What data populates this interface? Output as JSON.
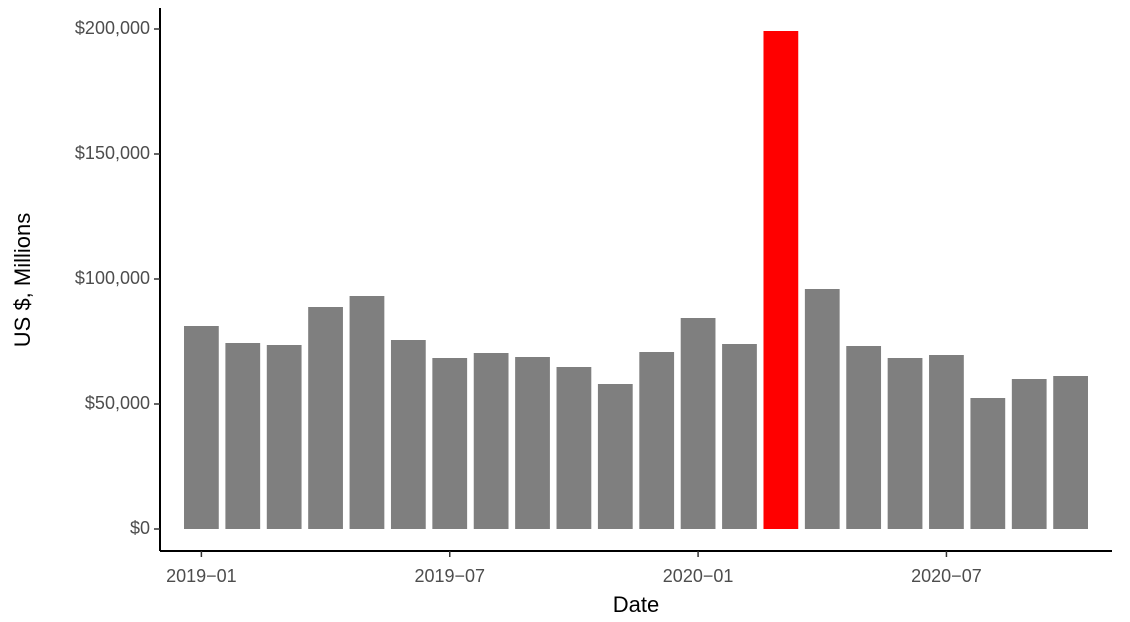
{
  "chart_data": {
    "type": "bar",
    "x_label": "Date",
    "y_label": "US $, Millions",
    "x": [
      "2019-01",
      "2019-02",
      "2019-03",
      "2019-04",
      "2019-05",
      "2019-06",
      "2019-07",
      "2019-08",
      "2019-09",
      "2019-10",
      "2019-11",
      "2019-12",
      "2020-01",
      "2020-02",
      "2020-03",
      "2020-04",
      "2020-05",
      "2020-06",
      "2020-07",
      "2020-08",
      "2020-09",
      "2020-10"
    ],
    "values": [
      81200,
      74400,
      73600,
      88800,
      93200,
      75600,
      68400,
      70400,
      68800,
      64800,
      58000,
      70800,
      84400,
      74000,
      199200,
      96000,
      73200,
      68400,
      69600,
      52400,
      60000,
      61200
    ],
    "colors": [
      "#7f7f7f",
      "#7f7f7f",
      "#7f7f7f",
      "#7f7f7f",
      "#7f7f7f",
      "#7f7f7f",
      "#7f7f7f",
      "#7f7f7f",
      "#7f7f7f",
      "#7f7f7f",
      "#7f7f7f",
      "#7f7f7f",
      "#7f7f7f",
      "#7f7f7f",
      "#ff0000",
      "#7f7f7f",
      "#7f7f7f",
      "#7f7f7f",
      "#7f7f7f",
      "#7f7f7f",
      "#7f7f7f",
      "#7f7f7f"
    ],
    "xlim": [
      "2018-12",
      "2020-11"
    ],
    "xticks": [
      {
        "value": "2019-01",
        "label": "2019−01"
      },
      {
        "value": "2019-07",
        "label": "2019−07"
      },
      {
        "value": "2020-01",
        "label": "2020−01"
      },
      {
        "value": "2020-07",
        "label": "2020−07"
      }
    ],
    "ylim": [
      -8800,
      208400
    ],
    "yticks": [
      {
        "value": 0,
        "label": "$0"
      },
      {
        "value": 50000,
        "label": "$50,000"
      },
      {
        "value": 100000,
        "label": "$100,000"
      },
      {
        "value": 150000,
        "label": "$150,000"
      },
      {
        "value": 200000,
        "label": "$200,000"
      }
    ],
    "grid": false
  }
}
